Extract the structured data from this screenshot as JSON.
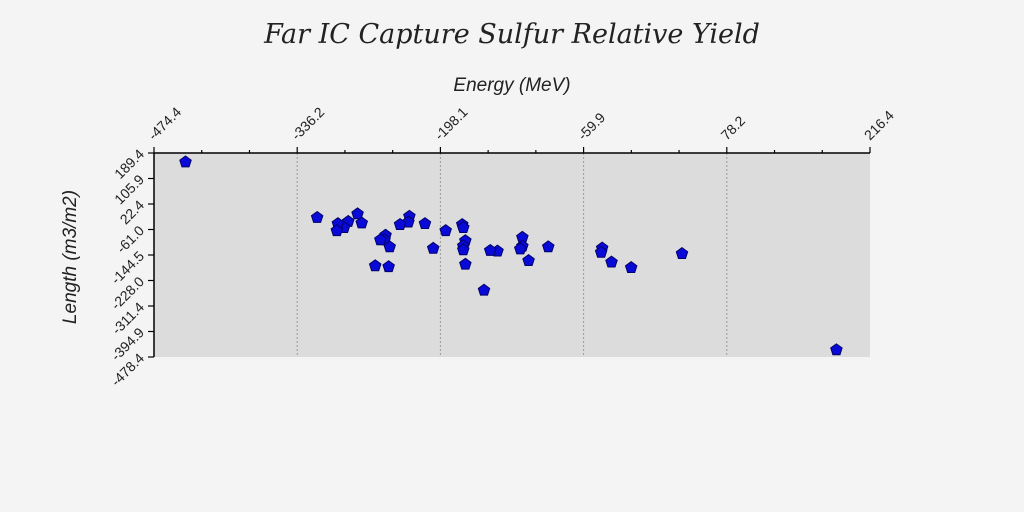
{
  "chart_data": {
    "type": "scatter",
    "title": "Far IC Capture Sulfur Relative Yield",
    "xlabel": "Energy (MeV)",
    "ylabel": "Length (m3/m2)",
    "xlim": [
      -474.4,
      216.4
    ],
    "ylim": [
      -478.4,
      189.4
    ],
    "x_ticks": [
      "-474.4",
      "-336.2",
      "-198.1",
      "-59.9",
      "78.2",
      "216.4"
    ],
    "y_ticks": [
      "189.4",
      "105.9",
      "22.4",
      "-61.0",
      "-144.5",
      "-228.0",
      "-311.4",
      "-394.9",
      "-478.4"
    ],
    "x_axis_position": "top",
    "grid": {
      "x": true,
      "y": false
    },
    "marker": "pentagon",
    "colors": {
      "point_fill": "#0a0ad8",
      "point_stroke": "#00006a",
      "plot_background": "#dcdcdc",
      "page_background": "#f4f4f4"
    },
    "points": [
      {
        "x": -444,
        "y": 160
      },
      {
        "x": -317,
        "y": -22
      },
      {
        "x": -278,
        "y": -10
      },
      {
        "x": -287,
        "y": -35
      },
      {
        "x": -291,
        "y": -55
      },
      {
        "x": -297,
        "y": -42
      },
      {
        "x": -274,
        "y": -40
      },
      {
        "x": -298,
        "y": -65
      },
      {
        "x": -251,
        "y": -80
      },
      {
        "x": -252,
        "y": -95
      },
      {
        "x": -256,
        "y": -95
      },
      {
        "x": -228,
        "y": -18
      },
      {
        "x": -229,
        "y": -37
      },
      {
        "x": -237,
        "y": -45
      },
      {
        "x": -213,
        "y": -42
      },
      {
        "x": -193,
        "y": -65
      },
      {
        "x": -177,
        "y": -45
      },
      {
        "x": -176,
        "y": -55
      },
      {
        "x": -174,
        "y": -98
      },
      {
        "x": -176,
        "y": -115
      },
      {
        "x": -176,
        "y": -128
      },
      {
        "x": -247,
        "y": -118
      },
      {
        "x": -205,
        "y": -123
      },
      {
        "x": -119,
        "y": -87
      },
      {
        "x": -94,
        "y": -118
      },
      {
        "x": -119,
        "y": -116
      },
      {
        "x": -121,
        "y": -125
      },
      {
        "x": -143,
        "y": -132
      },
      {
        "x": -150,
        "y": -130
      },
      {
        "x": -42,
        "y": -122
      },
      {
        "x": -43,
        "y": -136
      },
      {
        "x": -33,
        "y": -168
      },
      {
        "x": -113,
        "y": -163
      },
      {
        "x": -174,
        "y": -175
      },
      {
        "x": -261,
        "y": -180
      },
      {
        "x": -248,
        "y": -183
      },
      {
        "x": -156,
        "y": -260
      },
      {
        "x": -14,
        "y": -186
      },
      {
        "x": 35,
        "y": -140
      },
      {
        "x": 184,
        "y": -455
      }
    ]
  }
}
